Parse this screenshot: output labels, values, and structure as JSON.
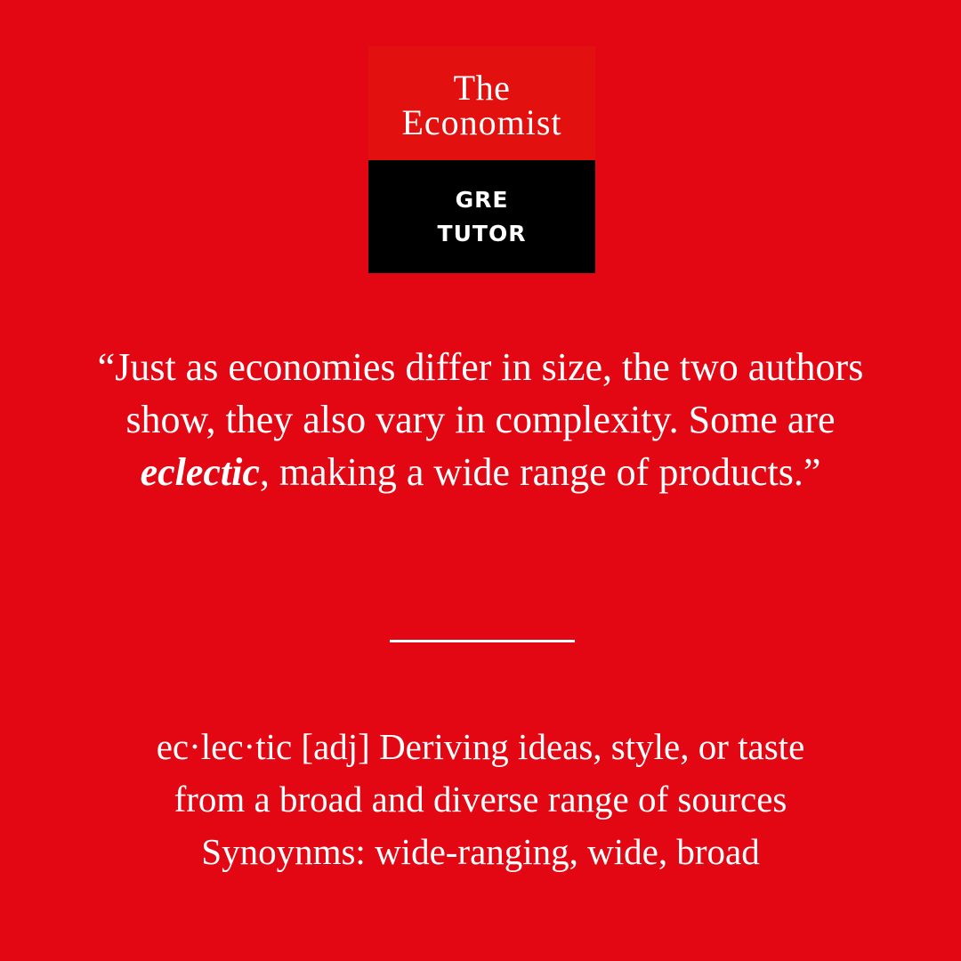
{
  "logo": {
    "line1": "The",
    "line2": "Economist",
    "sub1": "GRE",
    "sub2": "TUTOR"
  },
  "quote": {
    "before": "“Just as economies differ in size, the two authors show, they also vary in complexity. Some are ",
    "emphasis": "eclectic",
    "after": ", making a wide range of products.”"
  },
  "definition": {
    "line1": "ec·lec·tic [adj] Deriving ideas, style, or taste",
    "line2": "from a broad and diverse range of sources",
    "line3": "Synoynms: wide-ranging, wide, broad"
  },
  "colors": {
    "background": "#e30613",
    "logo_top": "#e2110f",
    "logo_bottom": "#000000",
    "text": "#ffffff"
  }
}
